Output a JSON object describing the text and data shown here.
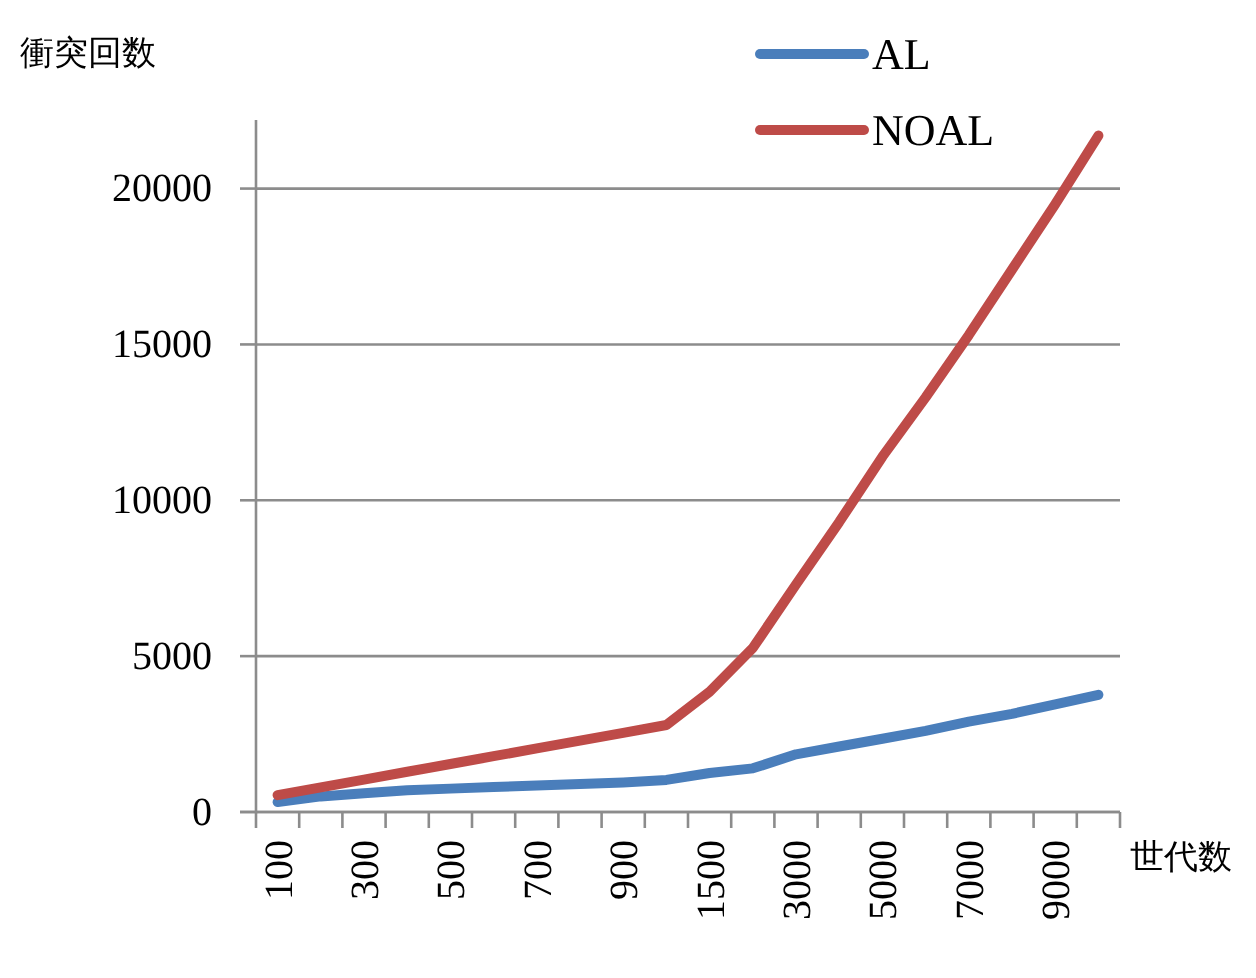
{
  "chart_data": {
    "type": "line",
    "ylabel": "衝突回数",
    "xlabel": "世代数",
    "categories": [
      "100",
      null,
      "300",
      null,
      "500",
      null,
      "700",
      null,
      "900",
      null,
      "1500",
      null,
      "3000",
      null,
      "5000",
      null,
      "7000",
      null,
      "9000",
      null
    ],
    "series": [
      {
        "name": "AL",
        "color": "#4a7ebb",
        "values": [
          320,
          500,
          600,
          700,
          750,
          800,
          850,
          900,
          950,
          1030,
          1250,
          1400,
          1850,
          2100,
          2350,
          2600,
          2900,
          3150,
          3450,
          3760
        ]
      },
      {
        "name": "NOAL",
        "color": "#be4b48",
        "values": [
          540,
          790,
          1040,
          1290,
          1540,
          1790,
          2040,
          2290,
          2540,
          2790,
          3860,
          5260,
          7300,
          9300,
          11400,
          13300,
          15300,
          17400,
          19500,
          21700
        ]
      }
    ],
    "ylim": [
      0,
      22200
    ],
    "yticks": [
      0,
      5000,
      10000,
      15000,
      20000
    ],
    "grid": "y",
    "legend": "top right",
    "marker": "none",
    "line_style": "solid"
  }
}
